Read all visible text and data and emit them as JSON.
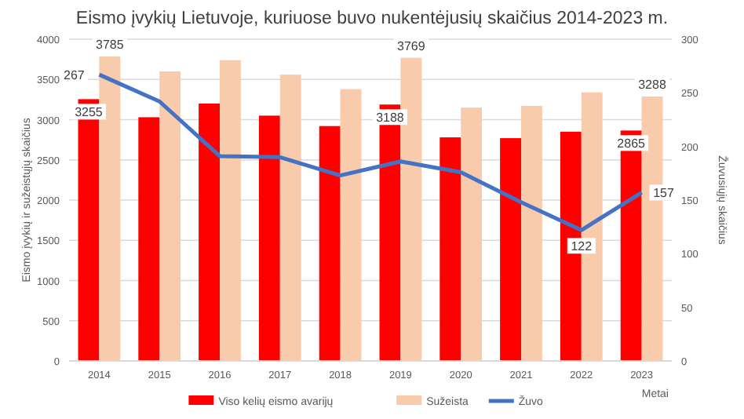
{
  "chart_data": {
    "type": "bar",
    "title": "Eismo įvykių Lietuvoje, kuriuose buvo nukentėjusių skaičius 2014-2023 m.",
    "xlabel": "Metai",
    "ylabel": "Eismo įvykių ir sužeistųjų skaičius",
    "y2label": "Žuvusiųjų skaičius",
    "categories": [
      "2014",
      "2015",
      "2016",
      "2017",
      "2018",
      "2019",
      "2020",
      "2021",
      "2022",
      "2023"
    ],
    "series": [
      {
        "name": "Viso kelių eismo avarijų",
        "color": "#ff0000",
        "values": [
          3255,
          3030,
          3200,
          3050,
          2920,
          3188,
          2780,
          2770,
          2850,
          2865
        ],
        "value_labels": [
          "3255",
          null,
          null,
          null,
          null,
          "3188",
          null,
          null,
          null,
          "2865"
        ]
      },
      {
        "name": "Sužeista",
        "color": "#f8cbad",
        "values": [
          3785,
          3600,
          3740,
          3560,
          3380,
          3769,
          3150,
          3170,
          3340,
          3288
        ],
        "value_labels": [
          "3785",
          null,
          null,
          null,
          null,
          "3769",
          null,
          null,
          null,
          "3288"
        ]
      },
      {
        "name": "Žuvo",
        "type": "line",
        "axis": "y2",
        "color": "#4472c4",
        "values": [
          267,
          242,
          191,
          190,
          173,
          186,
          176,
          148,
          122,
          157
        ],
        "value_labels": [
          "267",
          null,
          null,
          null,
          null,
          null,
          null,
          null,
          "122",
          "157"
        ]
      }
    ],
    "ylim": [
      0,
      4000
    ],
    "yticks": [
      0,
      500,
      1000,
      1500,
      2000,
      2500,
      3000,
      3500,
      4000
    ],
    "y2lim": [
      0,
      300
    ],
    "y2ticks": [
      0,
      50,
      100,
      150,
      200,
      250,
      300
    ],
    "grid": "y",
    "legend": "bottom",
    "line_style": "solid",
    "marker": "none"
  }
}
